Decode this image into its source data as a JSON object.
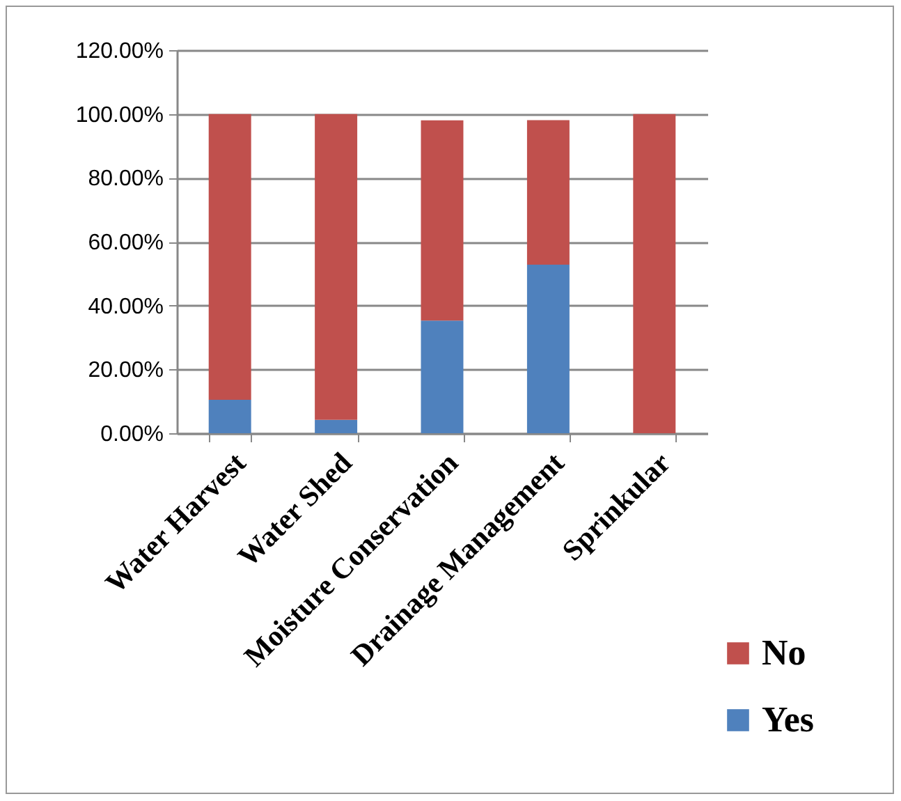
{
  "chart_data": {
    "type": "bar",
    "stacked": true,
    "categories": [
      "Water Harvest",
      "Water Shed",
      "Moisture Conservation",
      "Drainage Management",
      "Sprinkular"
    ],
    "series": [
      {
        "name": "Yes",
        "color": "#4f81bd",
        "values": [
          10.5,
          4.2,
          35.3,
          52.8,
          0
        ]
      },
      {
        "name": "No",
        "color": "#c0504d",
        "values": [
          89.5,
          95.8,
          62.7,
          45.3,
          100
        ]
      }
    ],
    "ylim": [
      0,
      120
    ],
    "yticks": [
      {
        "value": 0,
        "label": "0.00%"
      },
      {
        "value": 20,
        "label": "20.00%"
      },
      {
        "value": 40,
        "label": "40.00%"
      },
      {
        "value": 60,
        "label": "60.00%"
      },
      {
        "value": 80,
        "label": "80.00%"
      },
      {
        "value": 100,
        "label": "100.00%"
      },
      {
        "value": 120,
        "label": "120.00%"
      }
    ],
    "grid": "y",
    "legend": "bottom right"
  }
}
